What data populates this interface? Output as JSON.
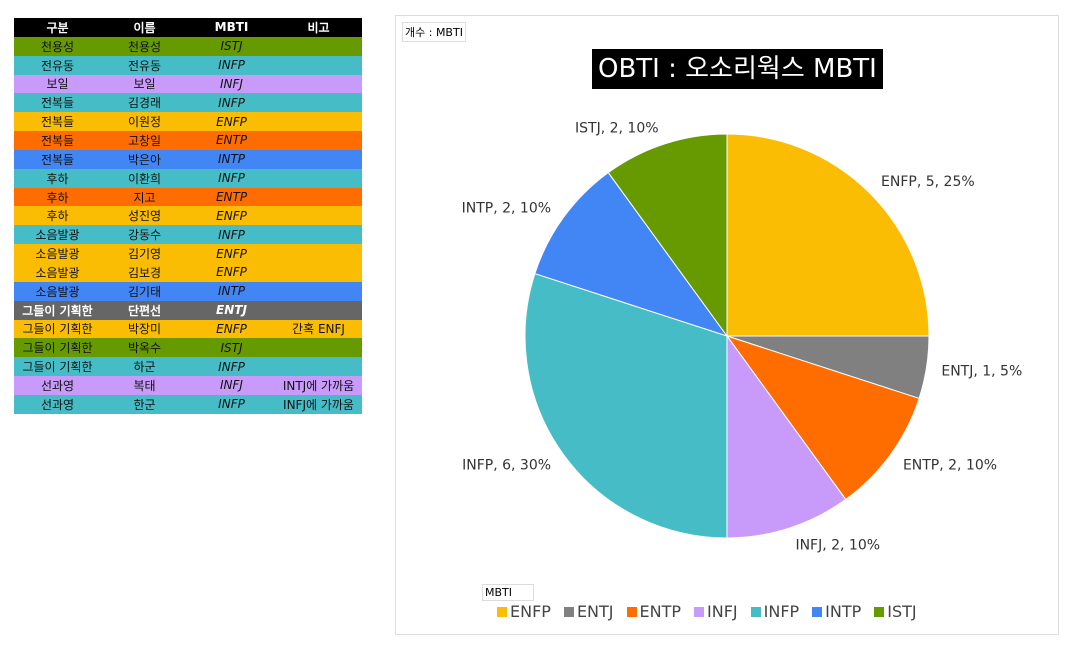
{
  "table": {
    "headers": [
      "구분",
      "이름",
      "MBTI",
      "비고"
    ],
    "rows": [
      [
        "천용성",
        "천용성",
        "ISTJ",
        ""
      ],
      [
        "전유동",
        "전유동",
        "INFP",
        ""
      ],
      [
        "보일",
        "보일",
        "INFJ",
        ""
      ],
      [
        "전복들",
        "김경래",
        "INFP",
        ""
      ],
      [
        "전복들",
        "이원정",
        "ENFP",
        ""
      ],
      [
        "전복들",
        "고창일",
        "ENTP",
        ""
      ],
      [
        "전복들",
        "박은아",
        "INTP",
        ""
      ],
      [
        "후하",
        "이환희",
        "INFP",
        ""
      ],
      [
        "후하",
        "지고",
        "ENTP",
        ""
      ],
      [
        "후하",
        "성진영",
        "ENFP",
        ""
      ],
      [
        "소음발광",
        "강동수",
        "INFP",
        ""
      ],
      [
        "소음발광",
        "김기영",
        "ENFP",
        ""
      ],
      [
        "소음발광",
        "김보경",
        "ENFP",
        ""
      ],
      [
        "소음발광",
        "김기태",
        "INTP",
        ""
      ],
      [
        "그들이 기획한",
        "단편선",
        "ENTJ",
        ""
      ],
      [
        "그들이 기획한",
        "박장미",
        "ENFP",
        "간혹 ENFJ"
      ],
      [
        "그들이 기획한",
        "박옥수",
        "ISTJ",
        ""
      ],
      [
        "그들이 기획한",
        "하군",
        "INFP",
        ""
      ],
      [
        "선과영",
        "복태",
        "INFJ",
        "INTJ에 가까움"
      ],
      [
        "선과영",
        "한군",
        "INFP",
        "INFJ에 가까움"
      ]
    ]
  },
  "colors": {
    "ENFP": "#fbbc04",
    "ENTJ": "#808080",
    "ENTP": "#ff6d01",
    "INFJ": "#c89bfa",
    "INFP": "#46bdc6",
    "INTP": "#4285f4",
    "ISTJ": "#669a00"
  },
  "chart_data": {
    "type": "pie",
    "title": "OBTI : 오소리웍스 MBTI",
    "field_button": "개수 : MBTI",
    "legend_title": "MBTI",
    "legend_position": "bottom",
    "categories": [
      "ENFP",
      "ENTJ",
      "ENTP",
      "INFJ",
      "INFP",
      "INTP",
      "ISTJ"
    ],
    "values": [
      5,
      1,
      2,
      2,
      6,
      2,
      2
    ],
    "percents": [
      25,
      5,
      10,
      10,
      30,
      10,
      10
    ],
    "labels": [
      "ENFP, 5, 25%",
      "ENTJ, 1, 5%",
      "ENTP, 2, 10%",
      "INFJ, 2, 10%",
      "INFP, 6, 30%",
      "INTP, 2, 10%",
      "ISTJ, 2, 10%"
    ]
  }
}
